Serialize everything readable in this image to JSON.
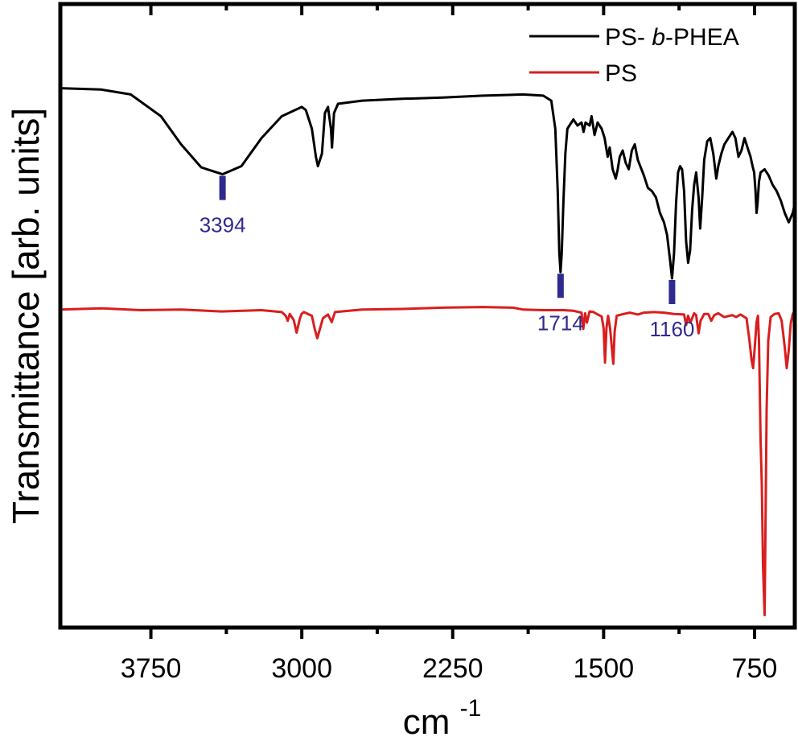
{
  "chart_data": {
    "type": "line",
    "xlabel": "cm",
    "xlabel_superscript": "-1",
    "ylabel": "Transmittance [arb. units]",
    "x_reversed": true,
    "xlim": [
      4200,
      550
    ],
    "x_ticks": [
      3750,
      3000,
      2250,
      1500,
      750
    ],
    "x_tick_labels": [
      "3750",
      "3000",
      "2250",
      "1500",
      "750"
    ],
    "x_minor_ticks": [
      3375,
      2625,
      1875,
      1125
    ],
    "ylim": [
      0,
      100
    ],
    "y_ticks_shown": false,
    "grid": false,
    "legend_position": "top-right",
    "series": [
      {
        "name": "PS- b-PHEA",
        "legend_prefix": "PS- ",
        "legend_italic": "b",
        "legend_suffix": "-PHEA",
        "color": "#000000",
        "points": [
          [
            4200,
            86.5
          ],
          [
            4000,
            86.3
          ],
          [
            3850,
            85.5
          ],
          [
            3700,
            82
          ],
          [
            3600,
            77.5
          ],
          [
            3500,
            73.8
          ],
          [
            3394,
            72.7
          ],
          [
            3300,
            74
          ],
          [
            3200,
            78.5
          ],
          [
            3100,
            82
          ],
          [
            3000,
            83.5
          ],
          [
            2980,
            83
          ],
          [
            2950,
            80
          ],
          [
            2930,
            75.5
          ],
          [
            2920,
            74
          ],
          [
            2900,
            76
          ],
          [
            2885,
            82.5
          ],
          [
            2870,
            83.5
          ],
          [
            2855,
            80
          ],
          [
            2850,
            77
          ],
          [
            2840,
            82.5
          ],
          [
            2820,
            84
          ],
          [
            2700,
            84.5
          ],
          [
            2500,
            84.8
          ],
          [
            2300,
            85
          ],
          [
            2100,
            85.3
          ],
          [
            1900,
            85.5
          ],
          [
            1800,
            85.3
          ],
          [
            1760,
            84.5
          ],
          [
            1740,
            80
          ],
          [
            1728,
            70
          ],
          [
            1720,
            60
          ],
          [
            1714,
            57
          ],
          [
            1708,
            60
          ],
          [
            1700,
            68
          ],
          [
            1690,
            76
          ],
          [
            1680,
            80
          ],
          [
            1650,
            81.5
          ],
          [
            1630,
            80.5
          ],
          [
            1610,
            81
          ],
          [
            1600,
            79.5
          ],
          [
            1590,
            81
          ],
          [
            1570,
            80.5
          ],
          [
            1560,
            82
          ],
          [
            1545,
            79
          ],
          [
            1530,
            81
          ],
          [
            1510,
            80
          ],
          [
            1495,
            78.5
          ],
          [
            1480,
            75.5
          ],
          [
            1470,
            77
          ],
          [
            1455,
            73.5
          ],
          [
            1440,
            72
          ],
          [
            1430,
            73.5
          ],
          [
            1420,
            75.5
          ],
          [
            1405,
            76.5
          ],
          [
            1390,
            74.5
          ],
          [
            1375,
            73.5
          ],
          [
            1360,
            76.5
          ],
          [
            1345,
            77.5
          ],
          [
            1330,
            75
          ],
          [
            1300,
            72.5
          ],
          [
            1280,
            70.5
          ],
          [
            1260,
            70
          ],
          [
            1240,
            69
          ],
          [
            1220,
            66.5
          ],
          [
            1200,
            65
          ],
          [
            1185,
            63
          ],
          [
            1170,
            59
          ],
          [
            1160,
            56
          ],
          [
            1150,
            60
          ],
          [
            1140,
            68
          ],
          [
            1130,
            73
          ],
          [
            1120,
            74
          ],
          [
            1110,
            73.5
          ],
          [
            1100,
            70
          ],
          [
            1090,
            62
          ],
          [
            1080,
            58.5
          ],
          [
            1070,
            60.5
          ],
          [
            1060,
            67
          ],
          [
            1050,
            71
          ],
          [
            1040,
            73
          ],
          [
            1028,
            69
          ],
          [
            1020,
            64
          ],
          [
            1010,
            69
          ],
          [
            1000,
            75
          ],
          [
            985,
            78
          ],
          [
            970,
            78.5
          ],
          [
            955,
            76
          ],
          [
            940,
            72
          ],
          [
            930,
            74
          ],
          [
            915,
            76
          ],
          [
            900,
            77.5
          ],
          [
            880,
            78.5
          ],
          [
            860,
            79.5
          ],
          [
            845,
            78.5
          ],
          [
            830,
            75.5
          ],
          [
            815,
            76.5
          ],
          [
            800,
            78.5
          ],
          [
            785,
            77
          ],
          [
            770,
            75.5
          ],
          [
            760,
            74
          ],
          [
            752,
            73
          ],
          [
            745,
            70
          ],
          [
            740,
            66.5
          ],
          [
            735,
            68
          ],
          [
            728,
            71.5
          ],
          [
            720,
            73
          ],
          [
            700,
            73.5
          ],
          [
            680,
            72.5
          ],
          [
            660,
            71
          ],
          [
            640,
            70
          ],
          [
            620,
            68.5
          ],
          [
            600,
            66.5
          ],
          [
            580,
            65
          ],
          [
            560,
            66.5
          ],
          [
            550,
            68
          ]
        ]
      },
      {
        "name": "PS",
        "color": "#d91e1e",
        "points": [
          [
            4200,
            51
          ],
          [
            4000,
            51.2
          ],
          [
            3800,
            50.9
          ],
          [
            3600,
            51
          ],
          [
            3400,
            50.7
          ],
          [
            3200,
            50.9
          ],
          [
            3100,
            50.6
          ],
          [
            3080,
            50
          ],
          [
            3070,
            49.2
          ],
          [
            3060,
            50.3
          ],
          [
            3040,
            49.3
          ],
          [
            3026,
            47.3
          ],
          [
            3010,
            49.5
          ],
          [
            3001,
            50.3
          ],
          [
            2990,
            50.6
          ],
          [
            2950,
            50
          ],
          [
            2935,
            47.8
          ],
          [
            2923,
            46.4
          ],
          [
            2910,
            47.9
          ],
          [
            2895,
            49.6
          ],
          [
            2870,
            50.2
          ],
          [
            2851,
            49
          ],
          [
            2835,
            50.6
          ],
          [
            2700,
            51
          ],
          [
            2500,
            51.1
          ],
          [
            2300,
            51.3
          ],
          [
            2100,
            51.4
          ],
          [
            1950,
            51.3
          ],
          [
            1900,
            51
          ],
          [
            1800,
            50.9
          ],
          [
            1700,
            50.9
          ],
          [
            1650,
            50.8
          ],
          [
            1610,
            50.5
          ],
          [
            1601,
            47.9
          ],
          [
            1592,
            50.4
          ],
          [
            1583,
            48.9
          ],
          [
            1570,
            50.7
          ],
          [
            1550,
            50.6
          ],
          [
            1530,
            50.2
          ],
          [
            1510,
            49.9
          ],
          [
            1500,
            48
          ],
          [
            1493,
            42.5
          ],
          [
            1486,
            48
          ],
          [
            1478,
            50
          ],
          [
            1468,
            48
          ],
          [
            1452,
            42.3
          ],
          [
            1445,
            47.5
          ],
          [
            1435,
            50
          ],
          [
            1400,
            50.3
          ],
          [
            1370,
            50.5
          ],
          [
            1330,
            50.2
          ],
          [
            1300,
            50.5
          ],
          [
            1250,
            50.6
          ],
          [
            1200,
            50.5
          ],
          [
            1150,
            50.3
          ],
          [
            1100,
            50.2
          ],
          [
            1090,
            48.5
          ],
          [
            1080,
            50
          ],
          [
            1069,
            48.9
          ],
          [
            1050,
            50.4
          ],
          [
            1040,
            50.1
          ],
          [
            1028,
            47.2
          ],
          [
            1018,
            49.2
          ],
          [
            1000,
            50.3
          ],
          [
            980,
            50.3
          ],
          [
            965,
            49.2
          ],
          [
            950,
            50.1
          ],
          [
            930,
            50.4
          ],
          [
            906,
            49.9
          ],
          [
            900,
            49.8
          ],
          [
            860,
            50.1
          ],
          [
            842,
            49.8
          ],
          [
            820,
            50.2
          ],
          [
            790,
            49.6
          ],
          [
            775,
            46
          ],
          [
            765,
            43
          ],
          [
            757,
            41.6
          ],
          [
            750,
            44.5
          ],
          [
            740,
            49
          ],
          [
            733,
            50
          ],
          [
            728,
            46
          ],
          [
            720,
            30
          ],
          [
            714,
            23
          ],
          [
            708,
            10
          ],
          [
            700,
            2
          ],
          [
            696,
            15
          ],
          [
            690,
            35
          ],
          [
            682,
            46
          ],
          [
            670,
            49.8
          ],
          [
            650,
            50.3
          ],
          [
            630,
            50.4
          ],
          [
            615,
            49.2
          ],
          [
            600,
            45
          ],
          [
            590,
            41.6
          ],
          [
            580,
            44.5
          ],
          [
            570,
            48.8
          ],
          [
            560,
            50.3
          ],
          [
            550,
            50.8
          ]
        ]
      }
    ],
    "peak_markers": [
      {
        "x": 3394,
        "series_index": 0,
        "label": "3394",
        "color": "#2f2a8f"
      },
      {
        "x": 1714,
        "series_index": 0,
        "label": "1714",
        "color": "#2f2a8f"
      },
      {
        "x": 1160,
        "series_index": 0,
        "label": "1160",
        "color": "#2f2a8f"
      }
    ]
  }
}
